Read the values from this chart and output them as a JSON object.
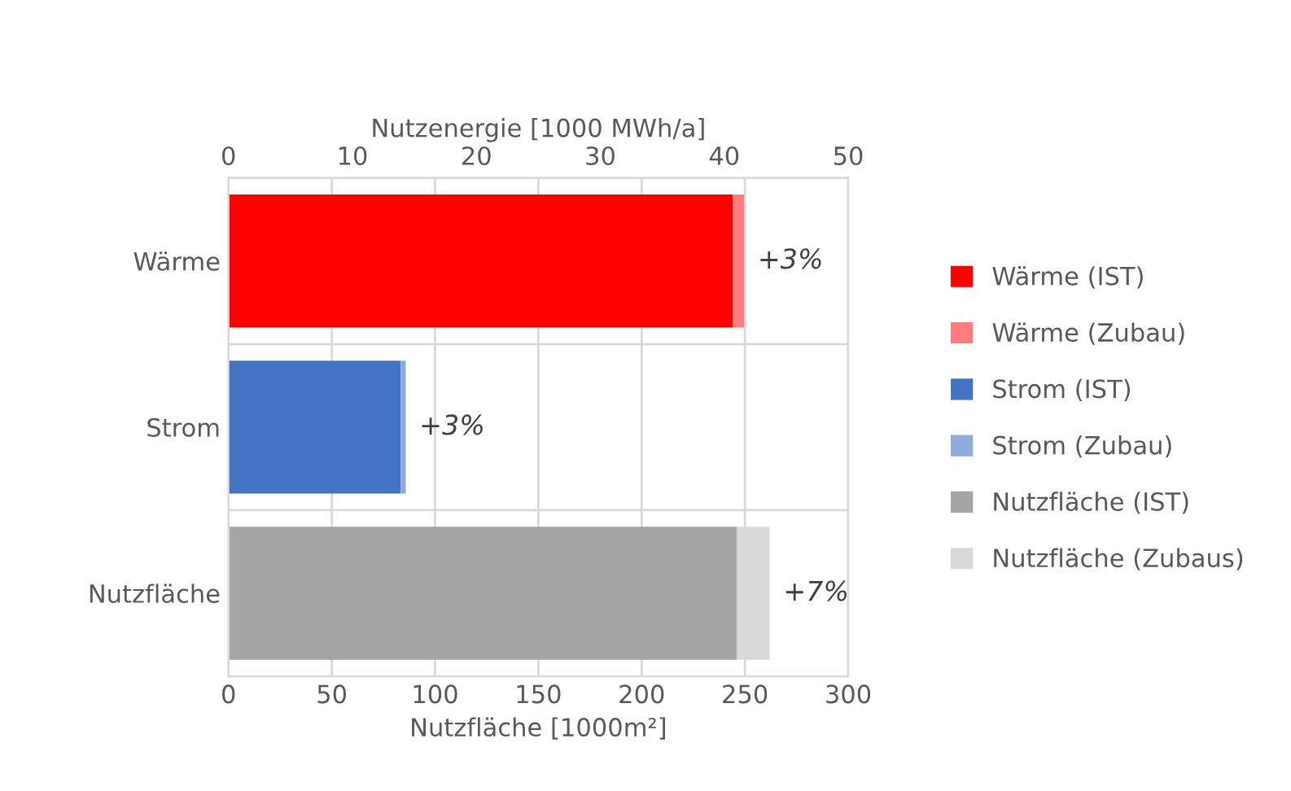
{
  "chart_data": {
    "type": "bar",
    "orientation": "horizontal",
    "stacked": true,
    "categories": [
      "Wärme",
      "Strom",
      "Nutzfläche"
    ],
    "series": [
      {
        "name": "Wärme (IST)",
        "color": "#ff0000",
        "axis": "x2",
        "values": [
          40.7,
          null,
          null
        ]
      },
      {
        "name": "Wärme (Zubau)",
        "color": "#ff7c80",
        "axis": "x2",
        "values": [
          0.9,
          null,
          null
        ]
      },
      {
        "name": "Strom (IST)",
        "color": "#4472c4",
        "axis": "x2",
        "values": [
          null,
          13.9,
          null
        ]
      },
      {
        "name": "Strom (Zubau)",
        "color": "#8faadc",
        "axis": "x2",
        "values": [
          null,
          0.4,
          null
        ]
      },
      {
        "name": "Nutzfläche (IST)",
        "color": "#a5a5a5",
        "values": [
          null,
          null,
          246
        ]
      },
      {
        "name": "Nutzfläche (Zubaus)",
        "color": "#d9d9d9",
        "values": [
          null,
          null,
          16
        ]
      }
    ],
    "xlabel": "Nutzfläche [1000m²]",
    "x2label": "Nutzenergie [1000 MWh/a]",
    "xlim": [
      0,
      300
    ],
    "xticks": [
      0,
      50,
      100,
      150,
      200,
      250,
      300
    ],
    "x2lim": [
      0,
      50
    ],
    "x2ticks": [
      0,
      10,
      20,
      30,
      40,
      50
    ],
    "annotations": [
      "+3%",
      "+3%",
      "+7%"
    ],
    "grid": true,
    "legend": "right"
  }
}
